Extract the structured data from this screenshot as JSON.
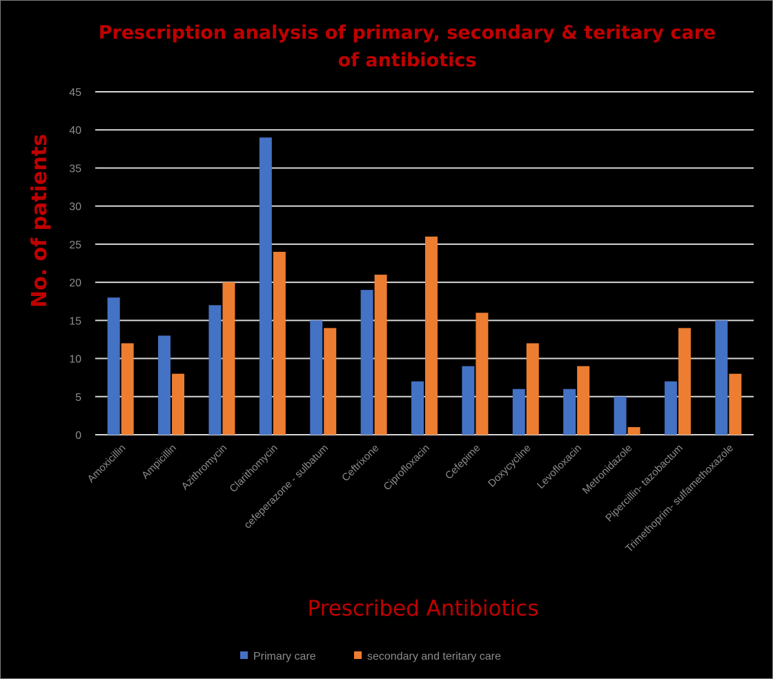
{
  "chart_data": {
    "type": "bar",
    "title": "Prescription analysis of primary, secondary & teritary care of antibiotics",
    "xlabel": "Prescribed Antibiotics",
    "ylabel": "No. of patients",
    "ylim": [
      0,
      45
    ],
    "yticks": [
      0,
      5,
      10,
      15,
      20,
      25,
      30,
      35,
      40,
      45
    ],
    "grid": true,
    "legend_position": "bottom",
    "categories": [
      "Amoxicillin",
      "Ampicillin",
      "Azithromycin",
      "Clarithomycin",
      "cefeperazone - sulbatum",
      "Ceftrixone",
      "Ciprofloxacin",
      "Cefepime",
      "Doxycycline",
      "Levofloxacin",
      "Metronidazole",
      "Pipercillin- tazobactum",
      "Trimethoprim- sulfamethoxazole"
    ],
    "series": [
      {
        "name": "Primary care",
        "color": "#4472c4",
        "values": [
          18,
          13,
          17,
          39,
          15,
          19,
          7,
          9,
          6,
          6,
          5,
          7,
          15
        ]
      },
      {
        "name": "secondary and teritary care",
        "color": "#ed7d31",
        "values": [
          12,
          8,
          20,
          24,
          14,
          21,
          26,
          16,
          12,
          9,
          1,
          14,
          8
        ]
      }
    ]
  }
}
